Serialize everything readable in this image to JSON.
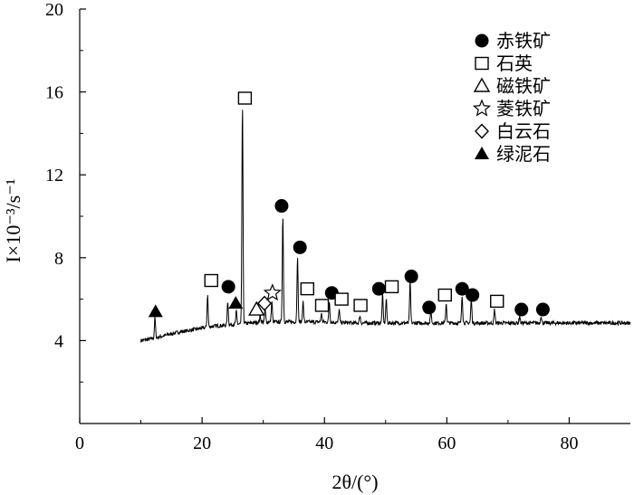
{
  "chart_data": {
    "type": "line",
    "xlabel": "2θ/(°)",
    "ylabel": "I×10⁻³/s⁻¹",
    "xlim": [
      0,
      90
    ],
    "ylim": [
      0,
      20
    ],
    "x_ticks": [
      "0",
      "20",
      "40",
      "60",
      "80"
    ],
    "y_ticks": [
      "4",
      "8",
      "12",
      "16",
      "20"
    ],
    "grid": false,
    "legend_position": "top-right",
    "legend": [
      {
        "marker": "filled-circle",
        "label": "赤铁矿"
      },
      {
        "marker": "open-square",
        "label": "石英"
      },
      {
        "marker": "open-triangle",
        "label": "磁铁矿"
      },
      {
        "marker": "open-star",
        "label": "菱铁矿"
      },
      {
        "marker": "open-diamond",
        "label": "白云石"
      },
      {
        "marker": "filled-triangle",
        "label": "绿泥石"
      }
    ],
    "baseline": {
      "x": [
        10,
        12,
        14,
        16,
        18,
        20,
        22,
        24,
        26,
        28,
        30,
        32,
        35,
        40,
        45,
        50,
        55,
        60,
        65,
        70,
        75,
        80,
        85,
        90
      ],
      "y": [
        4.0,
        4.1,
        4.25,
        4.4,
        4.5,
        4.6,
        4.7,
        4.75,
        4.8,
        4.85,
        4.9,
        4.9,
        4.9,
        4.9,
        4.85,
        4.85,
        4.85,
        4.85,
        4.85,
        4.85,
        4.85,
        4.85,
        4.85,
        4.85
      ]
    },
    "peaks": [
      {
        "x": 12.3,
        "y": 5.1
      },
      {
        "x": 20.9,
        "y": 6.2
      },
      {
        "x": 24.2,
        "y": 5.9
      },
      {
        "x": 25.6,
        "y": 5.4
      },
      {
        "x": 26.6,
        "y": 15.4
      },
      {
        "x": 29.5,
        "y": 5.2
      },
      {
        "x": 30.3,
        "y": 5.5
      },
      {
        "x": 31.4,
        "y": 5.9
      },
      {
        "x": 33.2,
        "y": 10.0
      },
      {
        "x": 35.6,
        "y": 8.0
      },
      {
        "x": 36.5,
        "y": 5.9
      },
      {
        "x": 39.5,
        "y": 5.3
      },
      {
        "x": 40.8,
        "y": 5.9
      },
      {
        "x": 42.4,
        "y": 5.5
      },
      {
        "x": 45.8,
        "y": 5.2
      },
      {
        "x": 49.5,
        "y": 6.2
      },
      {
        "x": 50.1,
        "y": 6.0
      },
      {
        "x": 54.0,
        "y": 6.8
      },
      {
        "x": 57.4,
        "y": 5.4
      },
      {
        "x": 59.9,
        "y": 5.8
      },
      {
        "x": 62.5,
        "y": 6.2
      },
      {
        "x": 64.0,
        "y": 6.0
      },
      {
        "x": 67.8,
        "y": 5.5
      },
      {
        "x": 71.9,
        "y": 5.2
      },
      {
        "x": 75.4,
        "y": 5.2
      }
    ],
    "annotations": [
      {
        "marker": "filled-triangle",
        "x": 12.4,
        "y": 5.4
      },
      {
        "marker": "open-square",
        "x": 21.5,
        "y": 6.9
      },
      {
        "marker": "filled-circle",
        "x": 24.3,
        "y": 6.6
      },
      {
        "marker": "filled-triangle",
        "x": 25.5,
        "y": 5.8
      },
      {
        "marker": "open-square",
        "x": 27.0,
        "y": 15.7
      },
      {
        "marker": "open-triangle",
        "x": 28.9,
        "y": 5.5
      },
      {
        "marker": "open-diamond",
        "x": 30.2,
        "y": 5.8
      },
      {
        "marker": "open-star",
        "x": 31.5,
        "y": 6.3
      },
      {
        "marker": "filled-circle",
        "x": 33.0,
        "y": 10.5
      },
      {
        "marker": "filled-circle",
        "x": 36.0,
        "y": 8.5
      },
      {
        "marker": "open-square",
        "x": 37.2,
        "y": 6.5
      },
      {
        "marker": "open-square",
        "x": 39.6,
        "y": 5.7
      },
      {
        "marker": "filled-circle",
        "x": 41.2,
        "y": 6.3
      },
      {
        "marker": "open-square",
        "x": 42.8,
        "y": 6.0
      },
      {
        "marker": "open-square",
        "x": 45.9,
        "y": 5.7
      },
      {
        "marker": "filled-circle",
        "x": 48.9,
        "y": 6.5
      },
      {
        "marker": "open-square",
        "x": 51.0,
        "y": 6.6
      },
      {
        "marker": "filled-circle",
        "x": 54.2,
        "y": 7.1
      },
      {
        "marker": "filled-circle",
        "x": 57.1,
        "y": 5.6
      },
      {
        "marker": "open-square",
        "x": 59.7,
        "y": 6.2
      },
      {
        "marker": "filled-circle",
        "x": 62.5,
        "y": 6.5
      },
      {
        "marker": "filled-circle",
        "x": 64.2,
        "y": 6.2
      },
      {
        "marker": "open-square",
        "x": 68.2,
        "y": 5.9
      },
      {
        "marker": "filled-circle",
        "x": 72.2,
        "y": 5.5
      },
      {
        "marker": "filled-circle",
        "x": 75.7,
        "y": 5.5
      }
    ],
    "colors": {
      "line": "#000000",
      "axis": "#000000",
      "background": "#ffffff"
    }
  }
}
